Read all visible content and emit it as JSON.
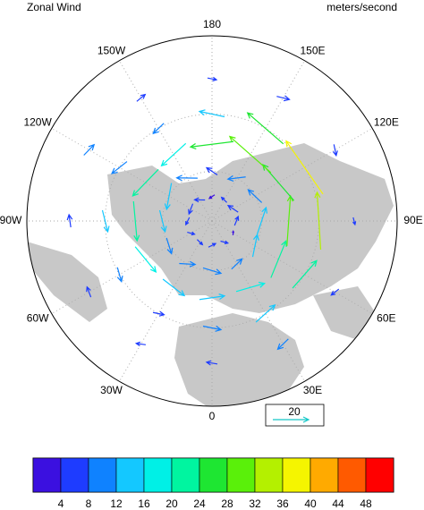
{
  "chart_data": {
    "type": "polar-vector",
    "title": "Zonal Wind",
    "units": "meters/second",
    "lon_ticks": [
      {
        "value": 180,
        "label": "180"
      },
      {
        "value": 150,
        "label": "150E"
      },
      {
        "value": 120,
        "label": "120E"
      },
      {
        "value": 90,
        "label": "90E"
      },
      {
        "value": 60,
        "label": "60E"
      },
      {
        "value": 30,
        "label": "30E"
      },
      {
        "value": 0,
        "label": "0"
      },
      {
        "value": -30,
        "label": "30W"
      },
      {
        "value": -60,
        "label": "60W"
      },
      {
        "value": -90,
        "label": "90W"
      },
      {
        "value": -120,
        "label": "120W"
      },
      {
        "value": -150,
        "label": "150W"
      }
    ],
    "lat_circles": [
      30,
      60
    ],
    "min_lat": 0,
    "lats": [
      75,
      60,
      45,
      30,
      15
    ],
    "lons": [
      0,
      30,
      60,
      90,
      120,
      150,
      180,
      210,
      240,
      270,
      300,
      330
    ],
    "u": [
      [
        4,
        3,
        2,
        5,
        6,
        4,
        3,
        5,
        6,
        4,
        3,
        4
      ],
      [
        10,
        8,
        12,
        15,
        10,
        8,
        6,
        10,
        14,
        12,
        9,
        8
      ],
      [
        14,
        16,
        22,
        28,
        26,
        30,
        24,
        18,
        20,
        22,
        18,
        15
      ],
      [
        10,
        14,
        20,
        32,
        36,
        26,
        14,
        8,
        10,
        12,
        8,
        6
      ],
      [
        -6,
        -8,
        -5,
        -4,
        -6,
        -7,
        -5,
        -6,
        -8,
        -7,
        -6,
        -5
      ]
    ],
    "v": [
      [
        2,
        -3,
        1,
        -2,
        3,
        -1,
        2,
        -3,
        1,
        -2,
        3,
        -1
      ],
      [
        -3,
        2,
        4,
        -5,
        3,
        6,
        -4,
        -6,
        5,
        3,
        -2,
        4
      ],
      [
        2,
        -4,
        3,
        -2,
        5,
        -6,
        3,
        4,
        -5,
        2,
        3,
        -2
      ],
      [
        -2,
        3,
        -4,
        2,
        3,
        -5,
        -3,
        2,
        -4,
        3,
        -2,
        2
      ],
      [
        1,
        -2,
        2,
        -1,
        2,
        -2,
        1,
        -1,
        2,
        -1,
        1,
        -2
      ]
    ],
    "ref_vector": 20,
    "colorbar": {
      "levels": [
        4,
        8,
        12,
        16,
        20,
        24,
        28,
        32,
        36,
        40,
        44,
        48
      ],
      "colors": [
        "#3b10e0",
        "#1e3cff",
        "#0f82ff",
        "#14c8ff",
        "#00f0e6",
        "#00f5a0",
        "#1ee632",
        "#5af00a",
        "#b4f000",
        "#f5f500",
        "#ffaa00",
        "#ff5a00",
        "#ff0000"
      ]
    }
  }
}
